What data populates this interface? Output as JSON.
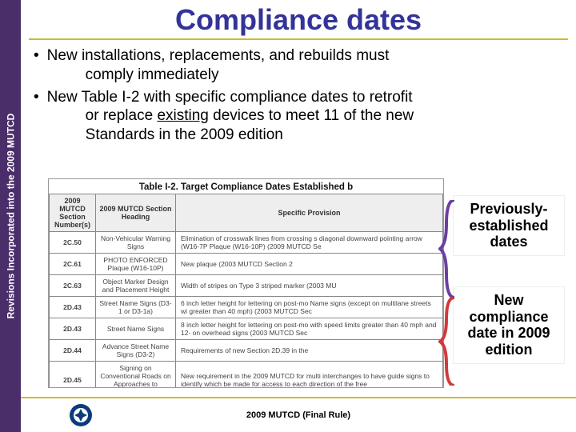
{
  "colors": {
    "sidebar_bg": "#4a2e6a",
    "title_color": "#333399",
    "accent_line": "#ccbb33",
    "bracket_purple": "#6a3fa0",
    "bracket_red": "#d03a3a",
    "text": "#000000",
    "bg": "#ffffff"
  },
  "sidebar": {
    "label": "Revisions Incorporated into the 2009 MUTCD"
  },
  "title": "Compliance dates",
  "bullets": [
    {
      "pre": "New installations, replacements, and rebuilds must",
      "indent": "comply immediately"
    },
    {
      "pre": "New Table I-2 with specific compliance dates to retrofit",
      "indent_parts": [
        "or replace ",
        "existing",
        " devices to meet 11 of the new"
      ],
      "indent2": "Standards in the 2009 edition"
    }
  ],
  "table": {
    "caption": "Table I-2. Target Compliance Dates Established b",
    "headers": [
      "2009 MUTCD Section Number(s)",
      "2009 MUTCD Section Heading",
      "Specific Provision"
    ],
    "rows": [
      {
        "section": "2C.50",
        "heading": "Non-Vehicular Warning Signs",
        "provision": "Elimination of crosswalk lines from crossing s\ndiagonal downward pointing arrow (W16-7P\nPlaque (W16-10P) (2009 MUTCD Se"
      },
      {
        "section": "2C.61",
        "heading": "PHOTO ENFORCED Plaque (W16-10P)",
        "provision": "New plaque (2003 MUTCD Section 2"
      },
      {
        "section": "2C.63",
        "heading": "Object Marker Design and Placement Height",
        "provision": "Width of stripes on Type 3 striped marker (2003 MU"
      },
      {
        "section": "2D.43",
        "heading": "Street Name Signs (D3-1 or D3-1a)",
        "provision": "6 inch letter height for lettering on post-mo\nName signs (except on multilane streets wi\ngreater than 40 mph) (2003 MUTCD Sec"
      },
      {
        "section": "2D.43",
        "heading": "Street Name Signs",
        "provision": "8 inch letter height for lettering on post-mo\nwith speed limits greater than 40 mph and 12-\non overhead signs (2003 MUTCD Sec"
      },
      {
        "section": "2D.44",
        "heading": "Advance Street Name Signs (D3-2)",
        "provision": "Requirements of new Section 2D.39 in the"
      },
      {
        "section": "2D.45",
        "heading": "Signing on Conventional Roads on Approaches to Interchanges",
        "provision": "New requirement in the 2009 MUTCD for multi\ninterchanges to have guide signs to identify which\nbe made for access to each direction of the free"
      }
    ]
  },
  "callouts": {
    "previous": "Previously-established dates",
    "new": "New compliance date in 2009 edition"
  },
  "footer": {
    "caption": "2009 MUTCD (Final Rule)",
    "logo_colors": {
      "ring": "#0a3b7d",
      "inner": "#ffffff"
    }
  },
  "typography": {
    "title_fontsize": 36,
    "bullet_fontsize": 19,
    "callout_fontsize": 18,
    "table_fontsize": 8.5,
    "footer_fontsize": 11
  }
}
